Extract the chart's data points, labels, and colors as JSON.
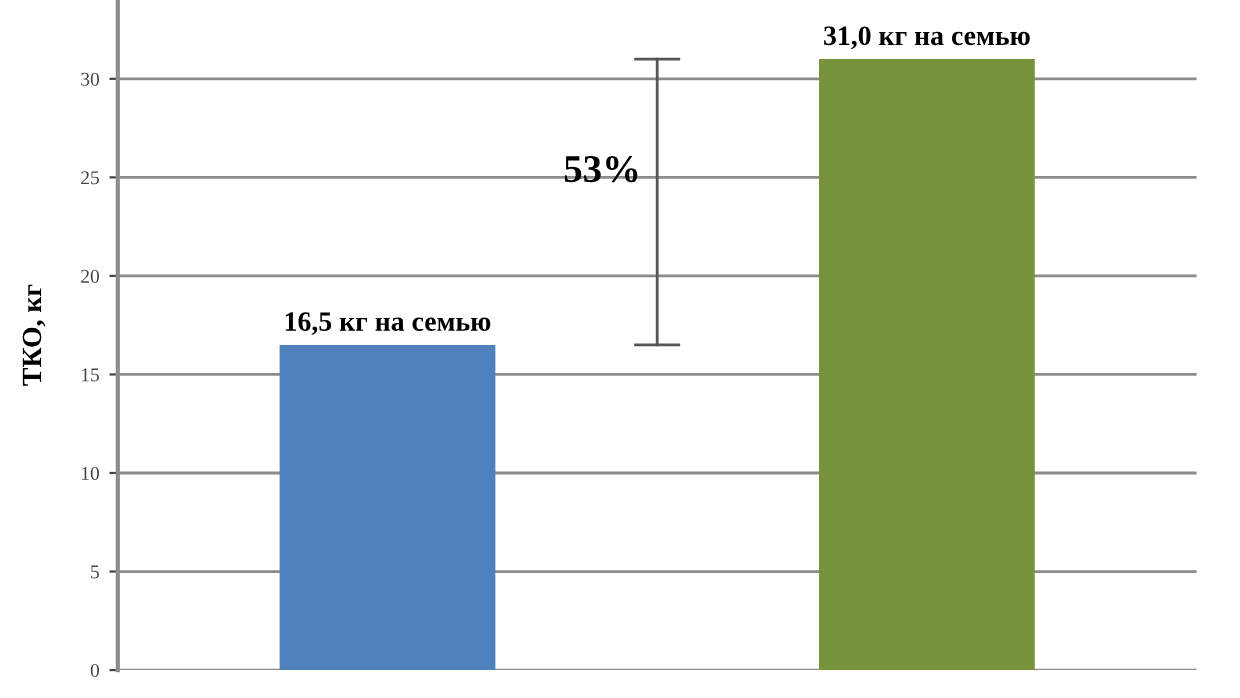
{
  "chart_data": {
    "type": "bar",
    "ylabel": "ТКО, кг",
    "categories": [
      null,
      null
    ],
    "values": [
      16.5,
      31.0
    ],
    "colors": [
      "#4f81bd",
      "#77933c"
    ],
    "value_labels": [
      "16,5 кг на семью",
      "31,0 кг на семью"
    ],
    "errors": [
      null,
      null
    ],
    "annotations": [
      "53%"
    ],
    "ylim": [
      0,
      34
    ],
    "yticks": [
      0,
      5,
      10,
      15,
      20,
      25,
      30
    ],
    "grid": "y"
  }
}
